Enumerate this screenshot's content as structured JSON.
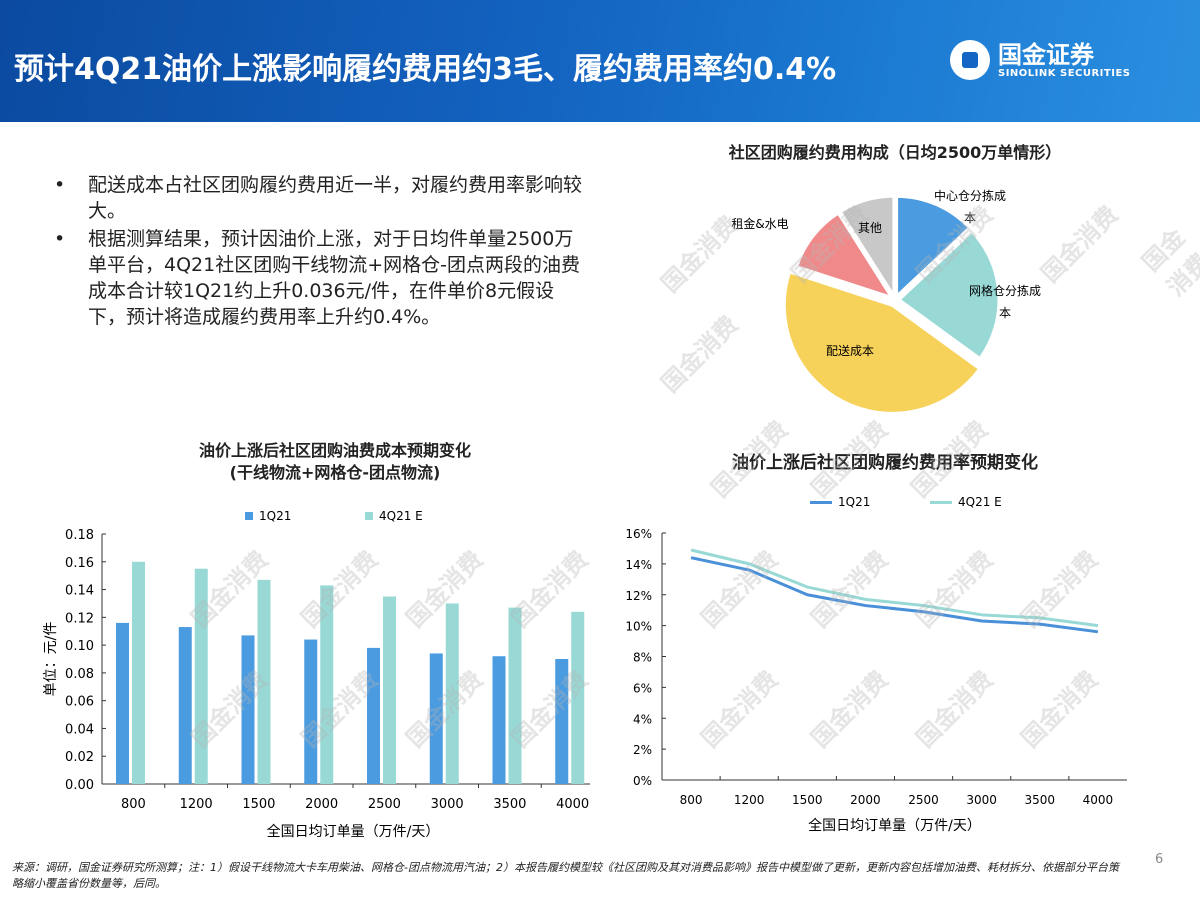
{
  "header": {
    "title": "预计4Q21油价上涨影响履约费用约3毛、履约费用率约0.4%",
    "logo_cn": "国金证券",
    "logo_en": "SINOLINK SECURITIES",
    "colors": {
      "band": "#1363c0"
    }
  },
  "bullets": [
    "配送成本占社区团购履约费用近一半，对履约费用率影响较大。",
    "根据测算结果，预计因油价上涨，对于日均件单量2500万单平台，4Q21社区团购干线物流+网格仓-团点两段的油费成本合计较1Q21约上升0.036元/件，在件单价8元假设下，预计将造成履约费用率上升约0.4%。"
  ],
  "watermark": "国金消费",
  "chart_data": [
    {
      "type": "pie",
      "title": "社区团购履约费用构成（日均2500万单情形）",
      "slices": [
        {
          "label": "中心仓分拣成本",
          "value": 13,
          "color": "#4a9be0"
        },
        {
          "label": "网格仓分拣成本",
          "value": 22,
          "color": "#98d9d6"
        },
        {
          "label": "配送成本",
          "value": 45,
          "color": "#f7d25a"
        },
        {
          "label": "租金&水电",
          "value": 11,
          "color": "#f08a8a"
        },
        {
          "label": "其他",
          "value": 9,
          "color": "#c8c8c8"
        }
      ]
    },
    {
      "type": "bar",
      "title": "油价上涨后社区团购油费成本预期变化",
      "subtitle": "(干线物流+网格仓-团点物流)",
      "categories": [
        "800",
        "1200",
        "1500",
        "2000",
        "2500",
        "3000",
        "3500",
        "4000"
      ],
      "series": [
        {
          "name": "1Q21",
          "color": "#4a9be0",
          "values": [
            0.116,
            0.113,
            0.107,
            0.104,
            0.098,
            0.094,
            0.092,
            0.09
          ]
        },
        {
          "name": "4Q21 E",
          "color": "#98d9d6",
          "values": [
            0.16,
            0.155,
            0.147,
            0.143,
            0.135,
            0.13,
            0.127,
            0.124
          ]
        }
      ],
      "ylim": [
        0,
        0.18
      ],
      "yticks": [
        "0.00",
        "0.02",
        "0.04",
        "0.06",
        "0.08",
        "0.10",
        "0.12",
        "0.14",
        "0.16",
        "0.18"
      ],
      "xlabel": "全国日均订单量（万件/天）",
      "ylabel": "单位：元/件",
      "legend": "top"
    },
    {
      "type": "line",
      "title": "油价上涨后社区团购履约费用率预期变化",
      "categories": [
        "800",
        "1200",
        "1500",
        "2000",
        "2500",
        "3000",
        "3500",
        "4000"
      ],
      "series": [
        {
          "name": "1Q21",
          "color": "#4a90d9",
          "values": [
            14.4,
            13.6,
            12.0,
            11.3,
            10.9,
            10.3,
            10.1,
            9.6
          ]
        },
        {
          "name": "4Q21 E",
          "color": "#98d9d6",
          "values": [
            14.9,
            14.0,
            12.5,
            11.7,
            11.3,
            10.7,
            10.5,
            10.0
          ]
        }
      ],
      "ylim": [
        0,
        16
      ],
      "yticks": [
        "0%",
        "2%",
        "4%",
        "6%",
        "8%",
        "10%",
        "12%",
        "14%",
        "16%"
      ],
      "xlabel": "全国日均订单量（万件/天）",
      "legend": "top"
    }
  ],
  "footer": "来源：调研，国金证券研究所测算；注：1）假设干线物流大卡车用柴油、网格仓-团点物流用汽油；2）本报告履约模型较《社区团购及其对消费品影响》报告中模型做了更新，更新内容包括增加油费、耗材拆分、依据部分平台策略缩小覆盖省份数量等，后同。",
  "page_number": "6"
}
